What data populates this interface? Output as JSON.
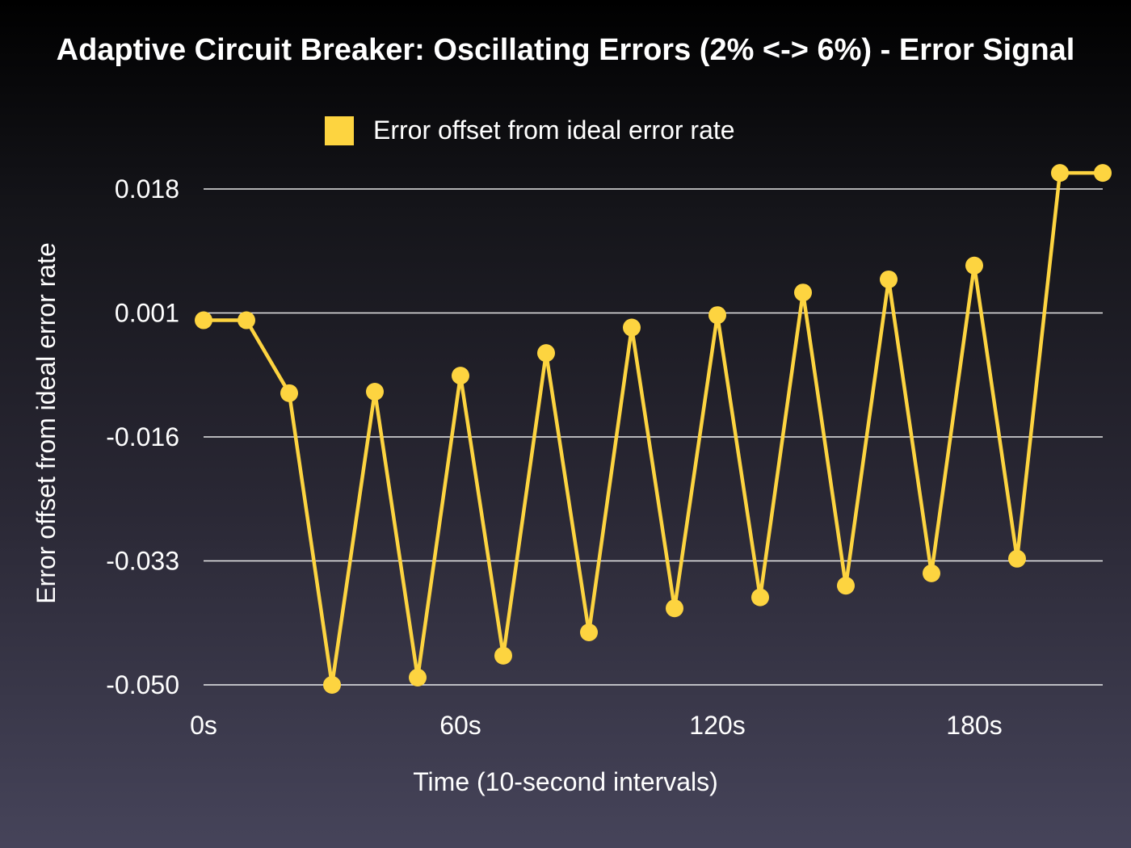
{
  "chart_data": {
    "type": "line",
    "title": "Adaptive Circuit Breaker: Oscillating Errors (2% <-> 6%) - Error Signal",
    "xlabel": "Time (10-second intervals)",
    "ylabel": "Error offset from ideal error rate",
    "x_unit": "s",
    "x": [
      0,
      10,
      20,
      30,
      40,
      50,
      60,
      70,
      80,
      90,
      100,
      110,
      120,
      130,
      140,
      150,
      160,
      170,
      180,
      190,
      200,
      210
    ],
    "x_tick_values": [
      0,
      60,
      120,
      180
    ],
    "x_tick_labels": [
      "0s",
      "60s",
      "120s",
      "180s"
    ],
    "xlim": [
      0,
      210
    ],
    "y_tick_values": [
      0.018,
      0.001,
      -0.016,
      -0.033,
      -0.05
    ],
    "y_tick_labels": [
      "0.018",
      "0.001",
      "-0.016",
      "-0.033",
      "-0.050"
    ],
    "ylim": [
      -0.05,
      0.018
    ],
    "grid": "horizontal",
    "legend_position": "top-center",
    "series": [
      {
        "name": "Error offset from ideal error rate",
        "color": "#fdd440",
        "values": [
          0.0,
          0.0,
          -0.01,
          -0.05,
          -0.0098,
          -0.049,
          -0.0076,
          -0.046,
          -0.0045,
          -0.0428,
          -0.001,
          -0.0395,
          0.0007,
          -0.038,
          0.0038,
          -0.0364,
          0.0056,
          -0.0347,
          0.0075,
          -0.0327,
          0.0202,
          0.0202
        ]
      }
    ]
  }
}
